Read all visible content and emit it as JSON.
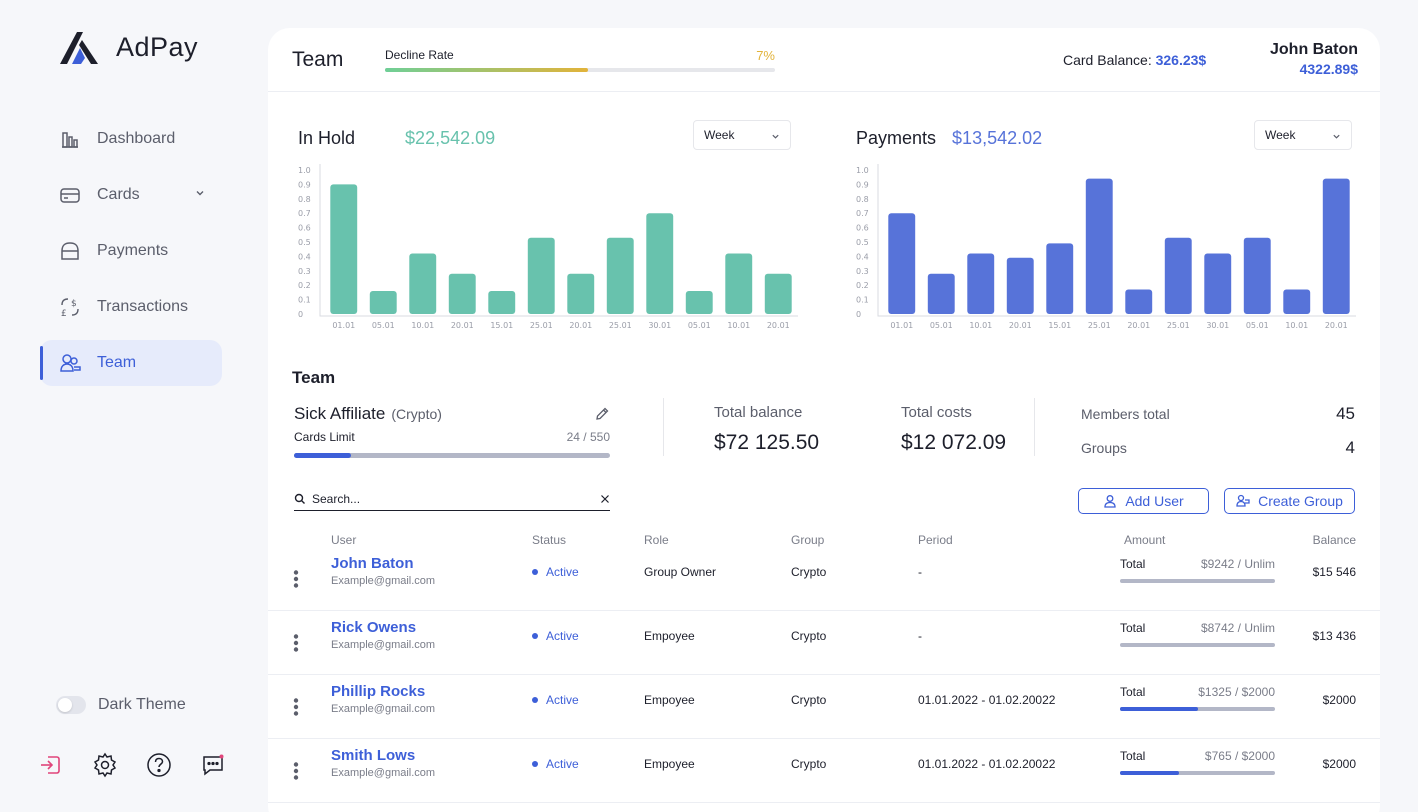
{
  "app": {
    "name": "AdPay"
  },
  "sidebar": {
    "items": [
      {
        "label": "Dashboard",
        "icon": "dashboard-icon"
      },
      {
        "label": "Cards",
        "icon": "card-icon"
      },
      {
        "label": "Payments",
        "icon": "wallet-icon"
      },
      {
        "label": "Transactions",
        "icon": "exchange-icon"
      },
      {
        "label": "Team",
        "icon": "team-icon"
      }
    ],
    "active": "Team",
    "dark_theme_label": "Dark Theme",
    "dark_theme_on": false
  },
  "header": {
    "title": "Team",
    "decline_label": "Decline Rate",
    "decline_value": "7%",
    "decline_fill": 0.52,
    "card_balance_label": "Card Balance:",
    "card_balance_value": "326.23$",
    "user_name": "John Baton",
    "user_balance": "4322.89$"
  },
  "charts": {
    "in_hold": {
      "title": "In Hold",
      "amount": "$22,542.09",
      "period": "Week",
      "color": "#68c2ad"
    },
    "payments": {
      "title": "Payments",
      "amount": "$13,542.02",
      "period": "Week",
      "color": "#5773d9"
    }
  },
  "chart_data": [
    {
      "type": "bar",
      "title": "In Hold",
      "categories": [
        "01.01",
        "05.01",
        "10.01",
        "20.01",
        "15.01",
        "25.01",
        "20.01",
        "25.01",
        "30.01",
        "05.01",
        "10.01",
        "20.01"
      ],
      "values": [
        0.9,
        0.16,
        0.42,
        0.28,
        0.16,
        0.53,
        0.28,
        0.53,
        0.7,
        0.16,
        0.42,
        0.28
      ],
      "yticks": [
        "1.0",
        "0.9",
        "0.8",
        "0.7",
        "0.6",
        "0.5",
        "0.4",
        "0.3",
        "0.2",
        "0.1",
        "0"
      ],
      "ylim": [
        0,
        1.0
      ]
    },
    {
      "type": "bar",
      "title": "Payments",
      "categories": [
        "01.01",
        "05.01",
        "10.01",
        "20.01",
        "15.01",
        "25.01",
        "20.01",
        "25.01",
        "30.01",
        "05.01",
        "10.01",
        "20.01"
      ],
      "values": [
        0.7,
        0.28,
        0.42,
        0.39,
        0.49,
        0.94,
        0.17,
        0.53,
        0.42,
        0.53,
        0.17,
        0.94
      ],
      "yticks": [
        "1.0",
        "0.9",
        "0.8",
        "0.7",
        "0.6",
        "0.5",
        "0.4",
        "0.3",
        "0.2",
        "0.1",
        "0"
      ],
      "ylim": [
        0,
        1.0
      ]
    }
  ],
  "team": {
    "heading": "Team",
    "name": "Sick Affiliate",
    "type": "(Crypto)",
    "cards_limit_label": "Cards Limit",
    "cards_limit_value": "24 / 550",
    "cards_limit_fill": 0.18,
    "total_balance_label": "Total balance",
    "total_balance": "$72 125.50",
    "total_costs_label": "Total costs",
    "total_costs": "$12 072.09",
    "members_label": "Members total",
    "members": "45",
    "groups_label": "Groups",
    "groups": "4"
  },
  "search": {
    "placeholder": "Search..."
  },
  "buttons": {
    "add_user": "Add User",
    "create_group": "Create Group"
  },
  "table": {
    "headers": {
      "user": "User",
      "status": "Status",
      "role": "Role",
      "group": "Group",
      "period": "Period",
      "amount": "Amount",
      "balance": "Balance"
    },
    "rows": [
      {
        "name": "John Baton",
        "email": "Example@gmail.com",
        "status": "Active",
        "role": "Group Owner",
        "group": "Crypto",
        "period": "-",
        "amount_label": "Total",
        "amount": "$9242 / Unlim",
        "amount_fill": 0,
        "balance": "$15 546"
      },
      {
        "name": "Rick Owens",
        "email": "Example@gmail.com",
        "status": "Active",
        "role": "Empoyee",
        "group": "Crypto",
        "period": "-",
        "amount_label": "Total",
        "amount": "$8742 / Unlim",
        "amount_fill": 0,
        "balance": "$13 436"
      },
      {
        "name": "Phillip Rocks",
        "email": "Example@gmail.com",
        "status": "Active",
        "role": "Empoyee",
        "group": "Crypto",
        "period": "01.01.2022 - 01.02.20022",
        "amount_label": "Total",
        "amount": "$1325 / $2000",
        "amount_fill": 0.5,
        "balance": "$2000"
      },
      {
        "name": "Smith Lows",
        "email": "Example@gmail.com",
        "status": "Active",
        "role": "Empoyee",
        "group": "Crypto",
        "period": "01.01.2022 - 01.02.20022",
        "amount_label": "Total",
        "amount": "$765 / $2000",
        "amount_fill": 0.38,
        "balance": "$2000"
      }
    ]
  }
}
